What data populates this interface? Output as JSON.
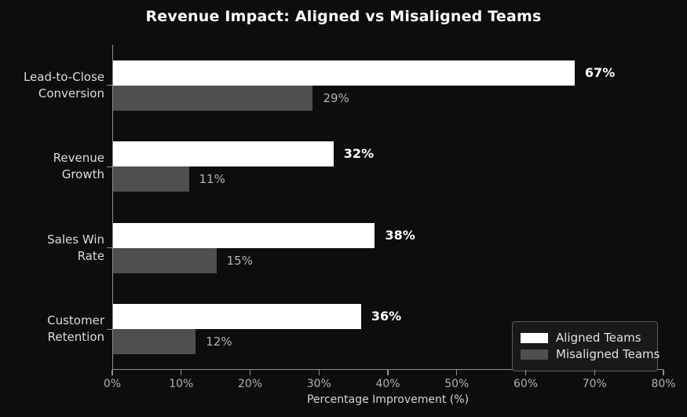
{
  "chart_data": {
    "type": "bar",
    "orientation": "horizontal",
    "title": "Revenue Impact: Aligned vs Misaligned Teams",
    "xlabel": "Percentage Improvement (%)",
    "categories": [
      "Lead-to-Close Conversion",
      "Revenue Growth",
      "Sales Win Rate",
      "Customer Retention"
    ],
    "category_display_lines": [
      "Lead-to-Close\nConversion",
      "Revenue\nGrowth",
      "Sales Win\nRate",
      "Customer\nRetention"
    ],
    "series": [
      {
        "name": "Aligned Teams",
        "color": "#ffffff",
        "values": [
          67,
          32,
          38,
          36
        ],
        "value_labels": [
          "67%",
          "32%",
          "38%",
          "36%"
        ]
      },
      {
        "name": "Misaligned Teams",
        "color": "#4f4f4f",
        "values": [
          29,
          11,
          15,
          12
        ],
        "value_labels": [
          "29%",
          "11%",
          "15%",
          "12%"
        ]
      }
    ],
    "xlim": [
      0,
      80
    ],
    "xtick_values": [
      0,
      10,
      20,
      30,
      40,
      50,
      60,
      70,
      80
    ],
    "xtick_labels": [
      "0%",
      "10%",
      "20%",
      "30%",
      "40%",
      "50%",
      "60%",
      "70%",
      "80%"
    ],
    "grid": false,
    "legend_position": "lower right",
    "colors": {
      "background": "#0d0d0d",
      "axis": "#8e8e8e",
      "tick_label": "#b0b0b0",
      "category_label": "#dcdcdc",
      "aligned_value_label": "#ffffff",
      "misaligned_value_label": "#b3b3b3"
    }
  }
}
